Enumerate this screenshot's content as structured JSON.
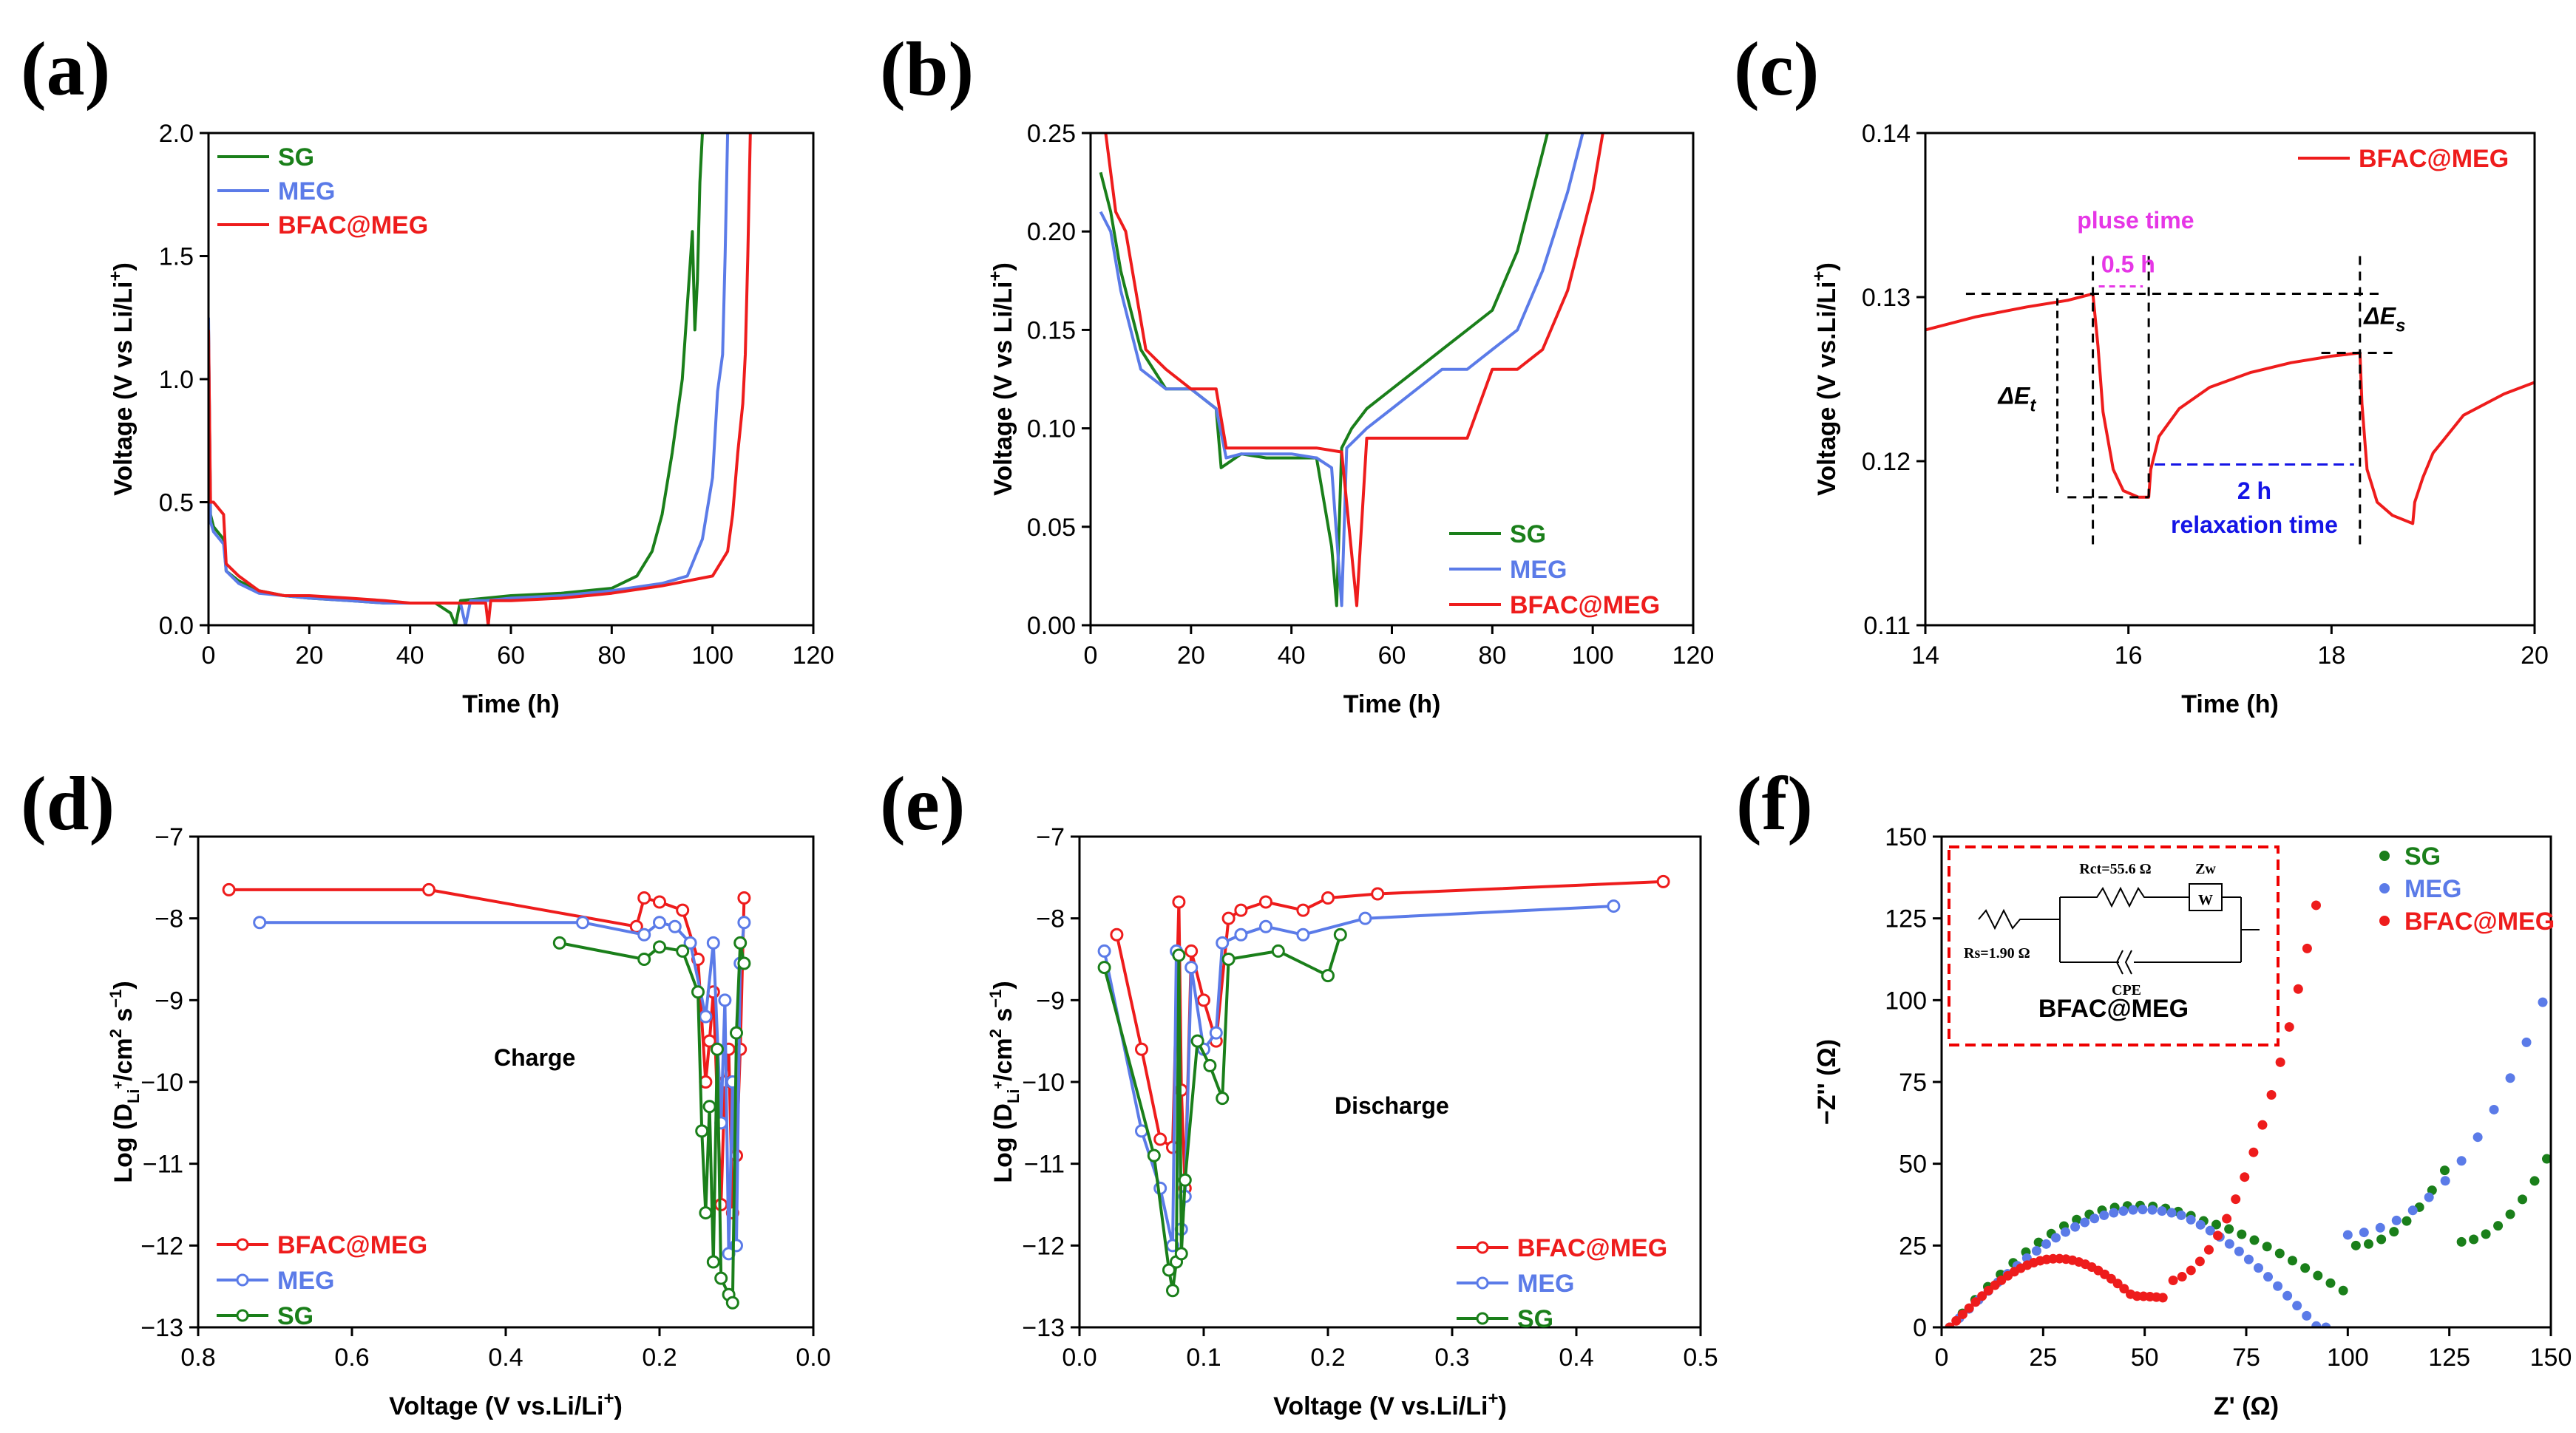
{
  "colors": {
    "SG": "#1a7f1a",
    "MEG": "#5b7be8",
    "BFAC@MEG": "#ee1c1c",
    "pink": "#e636e6",
    "blue": "#1414e6"
  },
  "chart_data": [
    {
      "id": "a",
      "panel_label": "(a)",
      "type": "line",
      "xlabel": "Time (h)",
      "ylabel": "Voltage (V vs Li/Li+)",
      "xlim": [
        0,
        120
      ],
      "ylim": [
        0,
        2.0
      ],
      "xticks": [
        0,
        20,
        40,
        60,
        80,
        100,
        120
      ],
      "yticks": [
        0.0,
        0.5,
        1.0,
        1.5,
        2.0
      ],
      "legend": "top-left",
      "series": [
        {
          "name": "SG",
          "color": "#1a7f1a",
          "x": [
            0,
            0.4,
            1,
            3,
            3.5,
            6,
            10,
            15,
            20,
            28,
            35,
            40,
            45,
            48,
            49,
            50,
            55,
            60,
            70,
            80,
            85,
            88,
            90,
            92,
            94,
            95,
            96,
            96.5,
            97,
            97.5,
            98
          ],
          "y": [
            1.2,
            0.45,
            0.4,
            0.35,
            0.22,
            0.18,
            0.14,
            0.12,
            0.11,
            0.1,
            0.09,
            0.09,
            0.09,
            0.05,
            0.0,
            0.1,
            0.11,
            0.12,
            0.13,
            0.15,
            0.2,
            0.3,
            0.45,
            0.7,
            1.0,
            1.3,
            1.6,
            1.2,
            1.4,
            1.8,
            2.0
          ]
        },
        {
          "name": "MEG",
          "color": "#5b7be8",
          "x": [
            0,
            0.4,
            1,
            3,
            3.5,
            6,
            10,
            15,
            20,
            28,
            35,
            40,
            45,
            50,
            51,
            52,
            55,
            60,
            70,
            80,
            90,
            95,
            98,
            100,
            101,
            102,
            102.5,
            103
          ],
          "y": [
            1.25,
            0.42,
            0.38,
            0.33,
            0.22,
            0.17,
            0.13,
            0.12,
            0.11,
            0.1,
            0.09,
            0.09,
            0.09,
            0.09,
            0.0,
            0.1,
            0.1,
            0.11,
            0.12,
            0.14,
            0.17,
            0.2,
            0.35,
            0.6,
            0.95,
            1.1,
            1.5,
            2.0
          ]
        },
        {
          "name": "BFAC@MEG",
          "color": "#ee1c1c",
          "x": [
            0,
            0.4,
            1,
            3,
            3.5,
            6,
            10,
            15,
            20,
            28,
            35,
            40,
            45,
            50,
            55,
            55.5,
            56,
            60,
            70,
            80,
            90,
            100,
            103,
            104,
            105,
            106,
            106.5,
            107,
            107.5
          ],
          "y": [
            1.2,
            0.5,
            0.5,
            0.45,
            0.25,
            0.2,
            0.14,
            0.12,
            0.12,
            0.11,
            0.1,
            0.09,
            0.09,
            0.09,
            0.09,
            0.0,
            0.1,
            0.1,
            0.11,
            0.13,
            0.16,
            0.2,
            0.3,
            0.45,
            0.7,
            0.9,
            1.1,
            1.5,
            2.0
          ]
        }
      ]
    },
    {
      "id": "b",
      "panel_label": "(b)",
      "type": "line",
      "xlabel": "Time (h)",
      "ylabel": "Voltage (V vs Li/Li+)",
      "xlim": [
        0,
        120
      ],
      "ylim": [
        0,
        0.25
      ],
      "xticks": [
        0,
        20,
        40,
        60,
        80,
        100,
        120
      ],
      "yticks": [
        0.0,
        0.05,
        0.1,
        0.15,
        0.2,
        0.25
      ],
      "legend": "bottom-right",
      "series": [
        {
          "name": "SG",
          "color": "#1a7f1a",
          "x": [
            2,
            4,
            6,
            8,
            10,
            15,
            20,
            25,
            26,
            30,
            35,
            40,
            45,
            48,
            49,
            50,
            52,
            55,
            60,
            65,
            70,
            75,
            80,
            85,
            88,
            90,
            91
          ],
          "y": [
            0.23,
            0.21,
            0.18,
            0.16,
            0.14,
            0.12,
            0.12,
            0.11,
            0.08,
            0.087,
            0.085,
            0.085,
            0.085,
            0.04,
            0.01,
            0.09,
            0.1,
            0.11,
            0.12,
            0.13,
            0.14,
            0.15,
            0.16,
            0.19,
            0.22,
            0.24,
            0.25
          ]
        },
        {
          "name": "MEG",
          "color": "#5b7be8",
          "x": [
            2,
            4,
            6,
            8,
            10,
            15,
            20,
            25,
            27,
            30,
            35,
            40,
            45,
            48,
            50,
            51,
            53,
            55,
            60,
            65,
            70,
            75,
            80,
            85,
            90,
            95,
            98
          ],
          "y": [
            0.21,
            0.2,
            0.17,
            0.15,
            0.13,
            0.12,
            0.12,
            0.11,
            0.085,
            0.087,
            0.087,
            0.087,
            0.085,
            0.08,
            0.01,
            0.09,
            0.095,
            0.1,
            0.11,
            0.12,
            0.13,
            0.13,
            0.14,
            0.15,
            0.18,
            0.22,
            0.25
          ]
        },
        {
          "name": "BFAC@MEG",
          "color": "#ee1c1c",
          "x": [
            3,
            5,
            7,
            9,
            11,
            15,
            20,
            25,
            27,
            30,
            35,
            40,
            45,
            50,
            53,
            55,
            56,
            60,
            65,
            70,
            75,
            80,
            85,
            90,
            95,
            100,
            102
          ],
          "y": [
            0.25,
            0.21,
            0.2,
            0.17,
            0.14,
            0.13,
            0.12,
            0.12,
            0.09,
            0.09,
            0.09,
            0.09,
            0.09,
            0.088,
            0.01,
            0.095,
            0.095,
            0.095,
            0.095,
            0.095,
            0.095,
            0.13,
            0.13,
            0.14,
            0.17,
            0.22,
            0.25
          ]
        }
      ]
    },
    {
      "id": "c",
      "panel_label": "(c)",
      "type": "line",
      "xlabel": "Time (h)",
      "ylabel": "Voltage (V vs.Li/Li+)",
      "xlim": [
        14,
        20
      ],
      "ylim": [
        0.11,
        0.14
      ],
      "xticks": [
        14,
        16,
        18,
        20
      ],
      "yticks": [
        0.11,
        0.12,
        0.13,
        0.14
      ],
      "legend": "top-right",
      "series": [
        {
          "name": "BFAC@MEG",
          "color": "#ee1c1c",
          "x": [
            14,
            14.5,
            15,
            15.4,
            15.65,
            15.7,
            15.75,
            15.85,
            15.95,
            16.1,
            16.2,
            16.22,
            16.3,
            16.5,
            16.8,
            17.2,
            17.6,
            18.0,
            18.28,
            18.3,
            18.35,
            18.45,
            18.6,
            18.8,
            18.82,
            18.9,
            19.0,
            19.3,
            19.7,
            20
          ],
          "y": [
            0.128,
            0.1288,
            0.1294,
            0.1298,
            0.1302,
            0.127,
            0.123,
            0.1195,
            0.1182,
            0.1178,
            0.1178,
            0.1195,
            0.1215,
            0.1232,
            0.1245,
            0.1254,
            0.126,
            0.1264,
            0.1266,
            0.1235,
            0.1195,
            0.1175,
            0.1167,
            0.1162,
            0.1175,
            0.119,
            0.1205,
            0.1228,
            0.1241,
            0.1248
          ]
        }
      ],
      "annotations": {
        "pulse_label": "pluse time",
        "pulse_value": "0.5 h",
        "relax_value": "2 h",
        "relax_label": "relaxation time",
        "delta_t": "ΔE",
        "delta_t_sub": "t",
        "delta_s": "ΔE",
        "delta_s_sub": "s"
      }
    },
    {
      "id": "d",
      "panel_label": "(d)",
      "type": "line",
      "xlabel": "Voltage (V vs.Li/Li+)",
      "ylabel": "Log (DLi+/cm2 s-1)",
      "xlim": [
        0.8,
        0.0
      ],
      "ylim": [
        -13,
        -7
      ],
      "xticks": [
        0.8,
        0.6,
        0.4,
        0.2,
        0.0
      ],
      "yticks": [
        -13,
        -12,
        -11,
        -10,
        -9,
        -8,
        -7
      ],
      "legend": "bottom-left",
      "annotation": "Charge",
      "series": [
        {
          "name": "BFAC@MEG",
          "color": "#ee1c1c",
          "x": [
            0.76,
            0.5,
            0.23,
            0.22,
            0.2,
            0.17,
            0.15,
            0.14,
            0.135,
            0.13,
            0.12,
            0.115,
            0.11,
            0.105,
            0.1,
            0.095,
            0.09
          ],
          "y": [
            -7.65,
            -7.65,
            -8.1,
            -7.75,
            -7.8,
            -7.9,
            -8.5,
            -10.0,
            -9.5,
            -8.9,
            -11.5,
            -10.0,
            -9.6,
            -11.6,
            -10.9,
            -9.6,
            -7.75
          ]
        },
        {
          "name": "MEG",
          "color": "#5b7be8",
          "x": [
            0.72,
            0.3,
            0.22,
            0.2,
            0.18,
            0.16,
            0.14,
            0.13,
            0.12,
            0.115,
            0.11,
            0.105,
            0.1,
            0.095,
            0.09
          ],
          "y": [
            -8.05,
            -8.05,
            -8.2,
            -8.05,
            -8.1,
            -8.3,
            -9.2,
            -8.3,
            -10.5,
            -9.0,
            -12.1,
            -10.0,
            -12.0,
            -8.55,
            -8.05
          ]
        },
        {
          "name": "SG",
          "color": "#1a7f1a",
          "x": [
            0.33,
            0.22,
            0.2,
            0.17,
            0.15,
            0.145,
            0.14,
            0.135,
            0.13,
            0.125,
            0.12,
            0.11,
            0.105,
            0.1,
            0.095,
            0.09
          ],
          "y": [
            -8.3,
            -8.5,
            -8.35,
            -8.4,
            -8.9,
            -10.6,
            -11.6,
            -10.3,
            -12.2,
            -9.6,
            -12.4,
            -12.6,
            -12.7,
            -9.4,
            -8.3,
            -8.55
          ]
        }
      ]
    },
    {
      "id": "e",
      "panel_label": "(e)",
      "type": "line",
      "xlabel": "Voltage (V vs.Li/Li+)",
      "ylabel": "Log (DLi+/cm2 s-1)",
      "xlim": [
        0.0,
        0.5
      ],
      "ylim": [
        -13,
        -7
      ],
      "xticks": [
        0.0,
        0.1,
        0.2,
        0.3,
        0.4,
        0.5
      ],
      "yticks": [
        -13,
        -12,
        -11,
        -10,
        -9,
        -8,
        -7
      ],
      "legend": "bottom-right",
      "annotation": "Discharge",
      "series": [
        {
          "name": "BFAC@MEG",
          "color": "#ee1c1c",
          "x": [
            0.03,
            0.05,
            0.065,
            0.075,
            0.08,
            0.082,
            0.085,
            0.09,
            0.1,
            0.11,
            0.12,
            0.13,
            0.15,
            0.18,
            0.2,
            0.24,
            0.47
          ],
          "y": [
            -8.2,
            -9.6,
            -10.7,
            -10.8,
            -7.8,
            -10.1,
            -11.3,
            -8.4,
            -9.0,
            -9.5,
            -8.0,
            -7.9,
            -7.8,
            -7.9,
            -7.75,
            -7.7,
            -7.55
          ]
        },
        {
          "name": "MEG",
          "color": "#5b7be8",
          "x": [
            0.02,
            0.05,
            0.065,
            0.075,
            0.078,
            0.082,
            0.085,
            0.09,
            0.1,
            0.11,
            0.115,
            0.13,
            0.15,
            0.18,
            0.23,
            0.43
          ],
          "y": [
            -8.4,
            -10.6,
            -11.3,
            -12.0,
            -8.4,
            -11.8,
            -11.4,
            -8.6,
            -9.6,
            -9.4,
            -8.3,
            -8.2,
            -8.1,
            -8.2,
            -8.0,
            -7.85
          ]
        },
        {
          "name": "SG",
          "color": "#1a7f1a",
          "x": [
            0.02,
            0.06,
            0.072,
            0.075,
            0.078,
            0.08,
            0.082,
            0.085,
            0.095,
            0.105,
            0.115,
            0.12,
            0.16,
            0.2,
            0.21
          ],
          "y": [
            -8.6,
            -10.9,
            -12.3,
            -12.55,
            -12.2,
            -8.45,
            -12.1,
            -11.2,
            -9.5,
            -9.8,
            -10.2,
            -8.5,
            -8.4,
            -8.7,
            -8.2
          ]
        }
      ]
    },
    {
      "id": "f",
      "panel_label": "(f)",
      "type": "scatter",
      "xlabel": "Z' (Ω)",
      "ylabel": "-Z'' (Ω)",
      "xlim": [
        0,
        150
      ],
      "ylim": [
        0,
        150
      ],
      "xticks": [
        0,
        25,
        50,
        75,
        100,
        125,
        150
      ],
      "yticks": [
        0,
        25,
        50,
        75,
        100,
        125,
        150
      ],
      "legend": "top-right",
      "series": [
        {
          "name": "SG",
          "color": "#1a7f1a",
          "curve": "sg"
        },
        {
          "name": "MEG",
          "color": "#5b7be8",
          "curve": "meg"
        },
        {
          "name": "BFAC@MEG",
          "color": "#ee1c1c",
          "curve": "bfac"
        }
      ],
      "inset": {
        "title": "BFAC@MEG",
        "rct": "Rct=55.6 Ω",
        "zw": "Zw",
        "w": "W",
        "rs": "Rs=1.90 Ω",
        "cpe": "CPE"
      }
    }
  ]
}
